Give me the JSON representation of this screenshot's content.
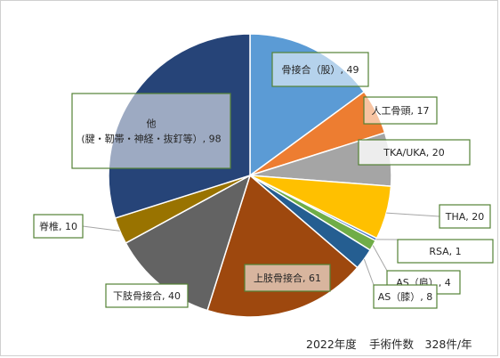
{
  "chart_data": {
    "type": "pie",
    "categories": [
      "骨接合（股）",
      "人工骨頭",
      "TKA/UKA",
      "THA",
      "RSA",
      "AS（肩）",
      "AS（膝）",
      "上肢骨接合",
      "下肢骨接合",
      "脊椎",
      "他\n(腱・靭帯・神経・抜釘等)"
    ],
    "labels": [
      "骨接合（股）, 49",
      "人工骨頭, 17",
      "TKA/UKA, 20",
      "THA, 20",
      "RSA, 1",
      "AS（肩）, 4",
      "AS（膝）, 8",
      "上肢骨接合, 61",
      "下肢骨接合, 40",
      "脊椎, 10",
      "他\n(腱・靭帯・神経・抜釘等）, 98"
    ],
    "values": [
      49,
      17,
      20,
      20,
      1,
      4,
      8,
      61,
      40,
      10,
      98
    ],
    "colors": [
      "#5b9bd5",
      "#ed7d31",
      "#a5a5a5",
      "#ffc000",
      "#4472c4",
      "#70ad47",
      "#255e91",
      "#9e480e",
      "#636363",
      "#997300",
      "#264478"
    ],
    "start_angle": "12 o'clock",
    "direction": "clockwise",
    "legend": "none"
  },
  "footer": {
    "year": "2022年度",
    "total": "手術件数　328件/年"
  }
}
